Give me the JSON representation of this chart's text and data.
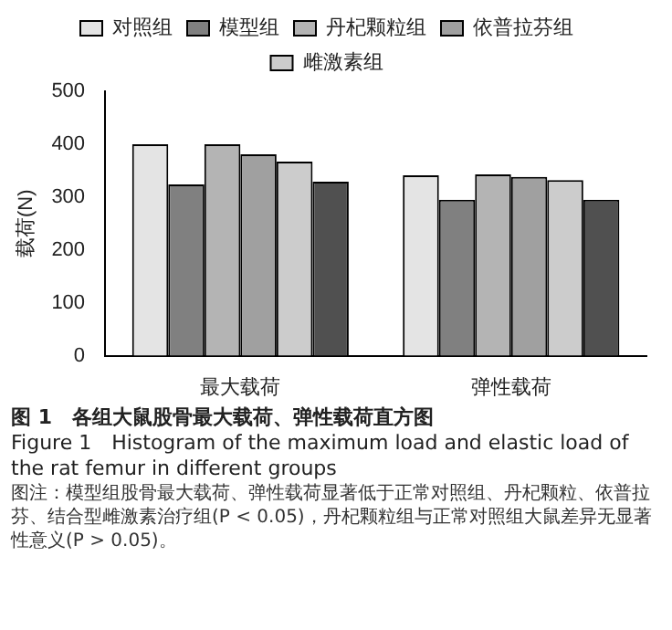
{
  "chart_data": {
    "type": "bar",
    "title": "图 1　各组大鼠股骨最大载荷、弹性载荷直方图",
    "subtitle": "Figure 1　Histogram of the maximum load and elastic load of the rat femur in different groups",
    "ylabel": "载荷(N)",
    "categories": [
      "最大载荷",
      "弹性载荷"
    ],
    "series": [
      {
        "name": "对照组",
        "color": "#e4e4e4",
        "values": [
          400,
          341
        ]
      },
      {
        "name": "模型组",
        "color": "#808080",
        "values": [
          324,
          295
        ]
      },
      {
        "name": "丹杞颗粒组",
        "color": "#b4b4b4",
        "values": [
          400,
          343
        ]
      },
      {
        "name": "依普拉芬组",
        "color": "#a0a0a0",
        "values": [
          381,
          338
        ]
      },
      {
        "name": "雌激素组",
        "color": "#cccccc",
        "values": [
          367,
          332
        ]
      },
      {
        "color": "#505050",
        "values": [
          329,
          295
        ]
      }
    ],
    "ylim": [
      0,
      500
    ],
    "yticks": [
      0,
      100,
      200,
      300,
      400,
      500
    ],
    "grid": false,
    "legend": "top",
    "annotations": [
      "图注：模型组股骨最大载荷、弹性载荷显著低于正常对照组、丹杞颗粒、依普拉芬、结合型雌激素治疗组(P < 0.05)，丹杞颗粒组与正常对照组大鼠差异无显著性意义(P > 0.05)。"
    ]
  }
}
